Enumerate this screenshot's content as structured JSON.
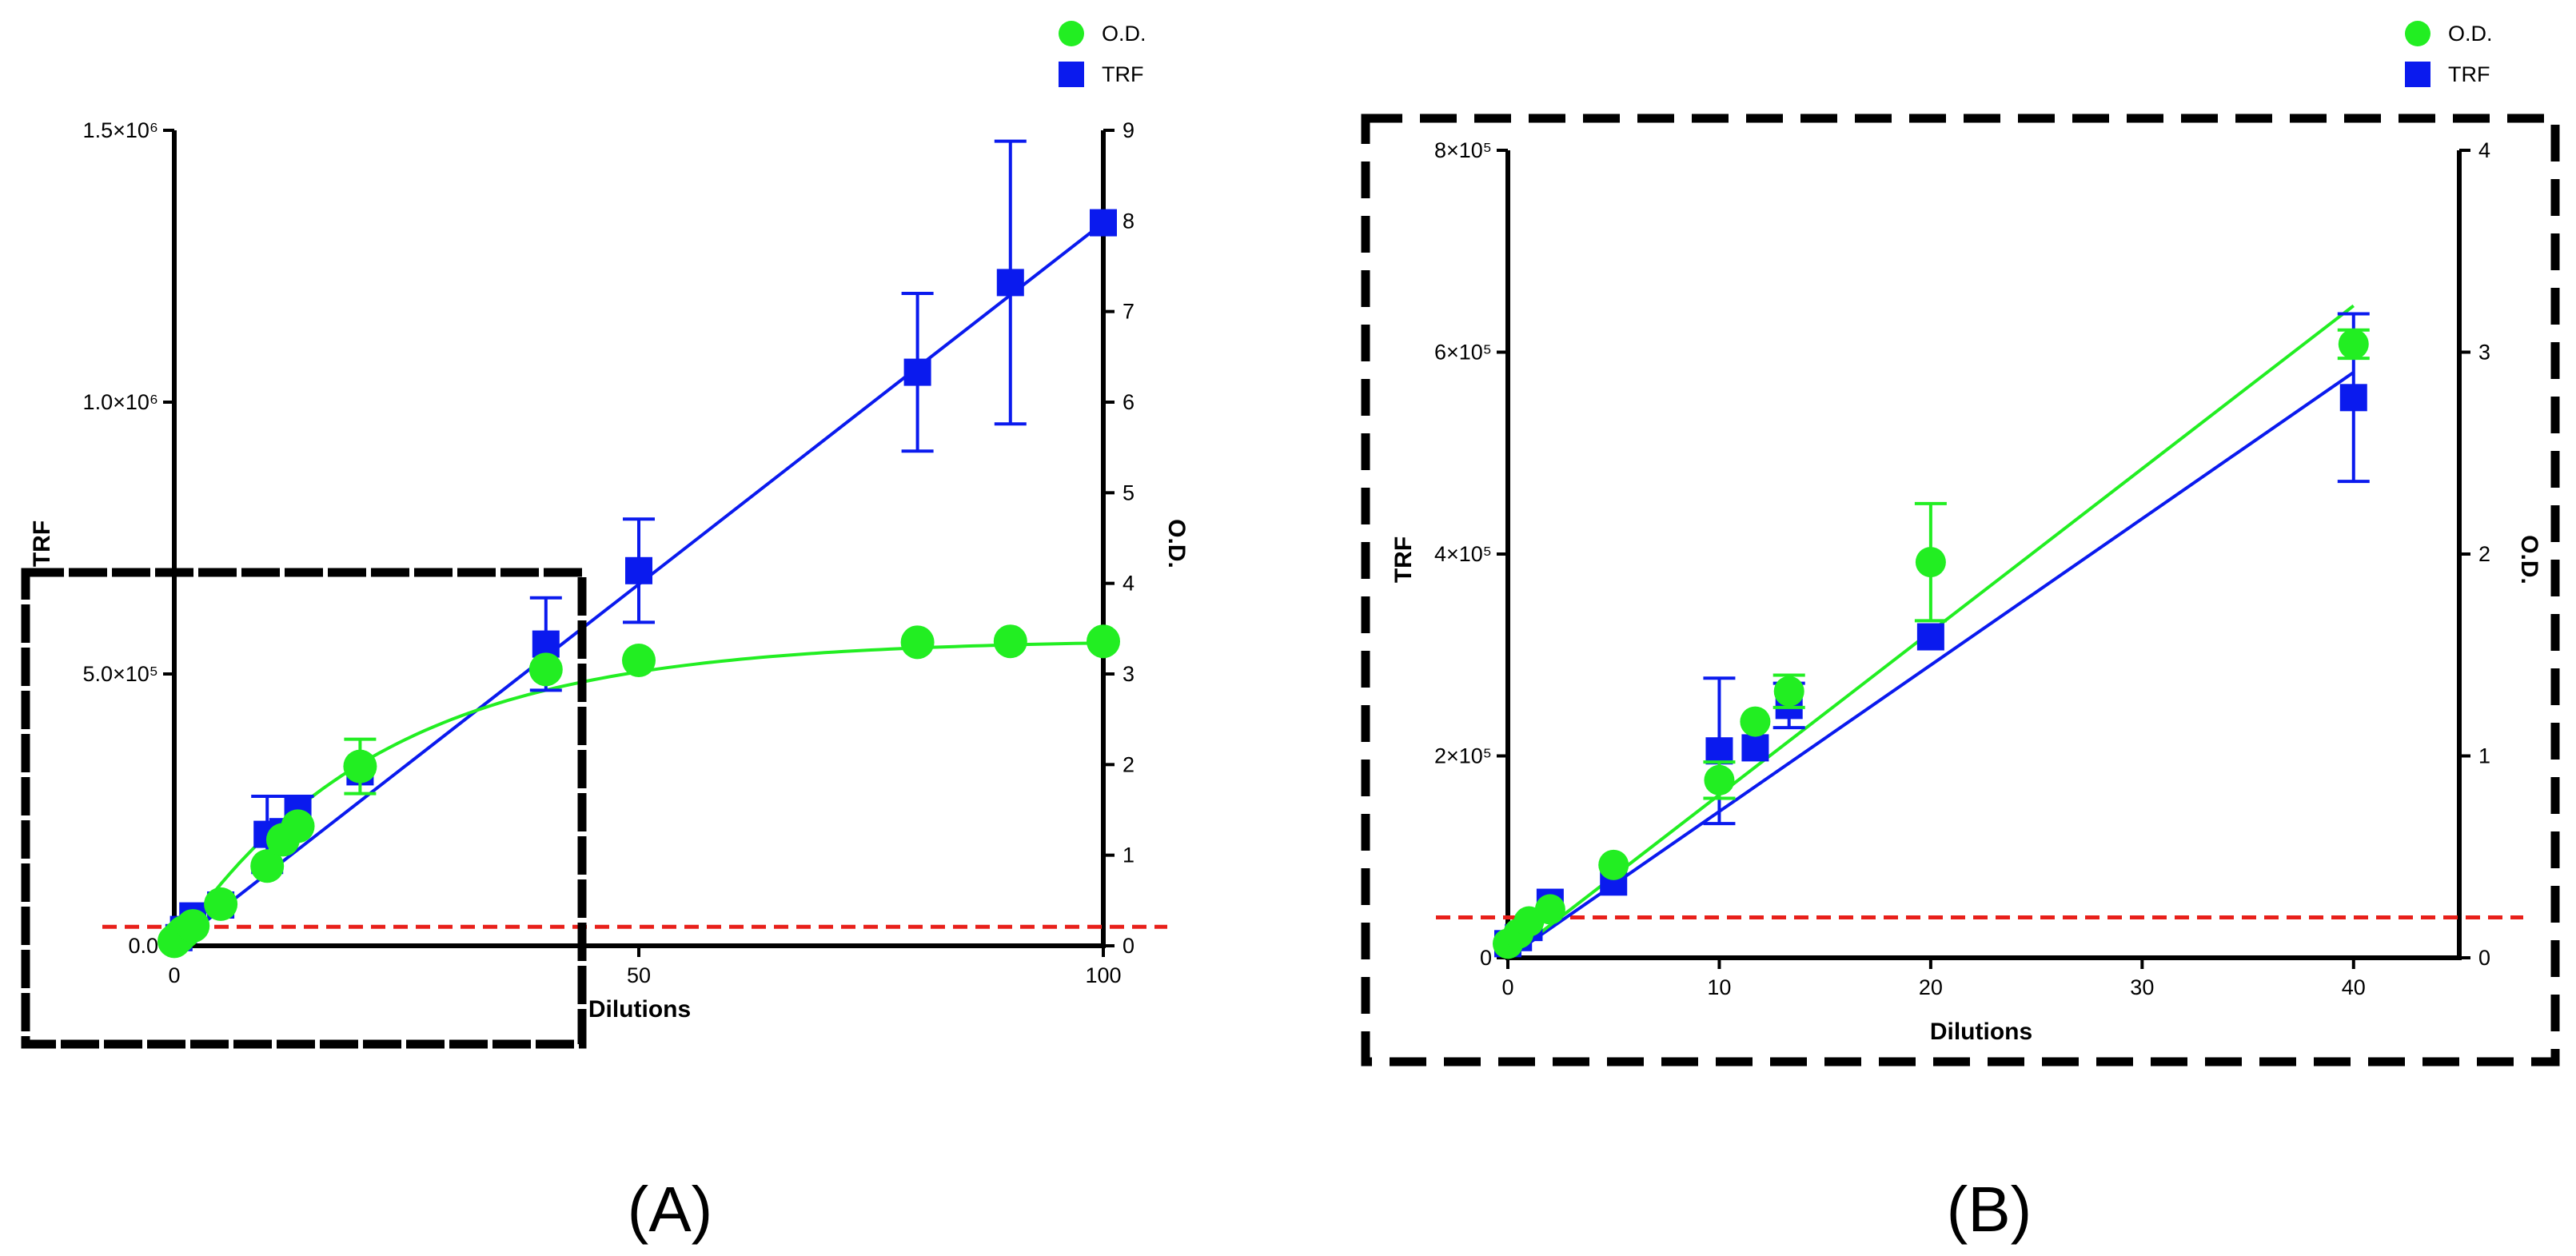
{
  "panel_labels": [
    "(A)",
    "(B)"
  ],
  "colors": {
    "od": "#22ee22",
    "trf": "#0a1aee",
    "threshold": "#e8201a",
    "frame": "#000000"
  },
  "legend": {
    "od_label": "O.D.",
    "trf_label": "TRF"
  },
  "chart_data": [
    {
      "id": "A",
      "type": "scatter",
      "xlabel": "Dilutions",
      "ylabel": "TRF",
      "y2label": "O.D.",
      "xlim": [
        0,
        100
      ],
      "ylim": [
        0,
        1500000
      ],
      "y2lim": [
        0,
        9
      ],
      "xticks": [
        0,
        50,
        100
      ],
      "yticks": [
        0,
        500000,
        1000000,
        1500000
      ],
      "ytick_labels": [
        "0.0",
        "5.0×10⁵",
        "1.0×10⁶",
        "1.5×10⁶"
      ],
      "y2ticks": [
        0,
        1,
        2,
        3,
        4,
        5,
        6,
        7,
        8,
        9
      ],
      "threshold_y": 35000,
      "series": [
        {
          "name": "TRF",
          "axis": "left",
          "marker": "square",
          "x": [
            0.5,
            1,
            2,
            5,
            10,
            11.7,
            13.3,
            20,
            40,
            50,
            80,
            90,
            100
          ],
          "y": [
            15000,
            30000,
            55000,
            75000,
            205000,
            210000,
            250000,
            320000,
            555000,
            690000,
            1055000,
            1220000,
            1330000
          ],
          "err": [
            0,
            0,
            0,
            0,
            70000,
            0,
            25000,
            0,
            85000,
            95000,
            145000,
            260000,
            0
          ],
          "fit": [
            [
              0,
              0
            ],
            [
              100,
              1330000
            ]
          ]
        },
        {
          "name": "O.D.",
          "axis": "right",
          "marker": "circle",
          "x": [
            0,
            0.5,
            1,
            2,
            5,
            10,
            11.7,
            13.3,
            20,
            40,
            50,
            80,
            90,
            100
          ],
          "y": [
            0.05,
            0.1,
            0.15,
            0.22,
            0.46,
            0.88,
            1.17,
            1.32,
            1.98,
            3.05,
            3.15,
            3.35,
            3.36,
            3.36
          ],
          "err": [
            0,
            0,
            0,
            0,
            0,
            0,
            0,
            0,
            0.3,
            0,
            0,
            0,
            0,
            0
          ],
          "fit_curve": "saturation",
          "plateau": 3.38,
          "rate": 0.045
        }
      ]
    },
    {
      "id": "B",
      "type": "scatter",
      "xlabel": "Dilutions",
      "ylabel": "TRF",
      "y2label": "O.D.",
      "xlim": [
        0,
        45
      ],
      "ylim": [
        0,
        800000
      ],
      "y2lim": [
        0,
        4
      ],
      "xticks": [
        0,
        10,
        20,
        30,
        40
      ],
      "yticks": [
        0,
        200000,
        400000,
        600000,
        800000
      ],
      "ytick_labels": [
        "0",
        "2×10⁵",
        "4×10⁵",
        "6×10⁵",
        "8×10⁵"
      ],
      "y2ticks": [
        0,
        1,
        2,
        3,
        4
      ],
      "threshold_y": 40000,
      "series": [
        {
          "name": "TRF",
          "axis": "left",
          "marker": "square",
          "x": [
            0,
            0.5,
            1,
            2,
            5,
            10,
            11.7,
            13.3,
            20,
            40
          ],
          "y": [
            14000,
            20000,
            30000,
            55000,
            75000,
            205000,
            208000,
            250000,
            318000,
            555000
          ],
          "err": [
            0,
            0,
            0,
            0,
            0,
            72000,
            0,
            22000,
            0,
            83000
          ],
          "fit": [
            [
              0,
              0
            ],
            [
              40,
              580000
            ]
          ]
        },
        {
          "name": "O.D.",
          "axis": "right",
          "marker": "circle",
          "x": [
            0,
            0.5,
            1,
            2,
            5,
            10,
            11.7,
            13.3,
            20,
            40
          ],
          "y": [
            0.07,
            0.12,
            0.18,
            0.24,
            0.46,
            0.88,
            1.17,
            1.32,
            1.96,
            3.04
          ],
          "err": [
            0,
            0,
            0,
            0,
            0,
            0.09,
            0,
            0.08,
            0.29,
            0.07
          ],
          "fit": [
            [
              0,
              0
            ],
            [
              40,
              3.23
            ]
          ]
        }
      ]
    }
  ]
}
